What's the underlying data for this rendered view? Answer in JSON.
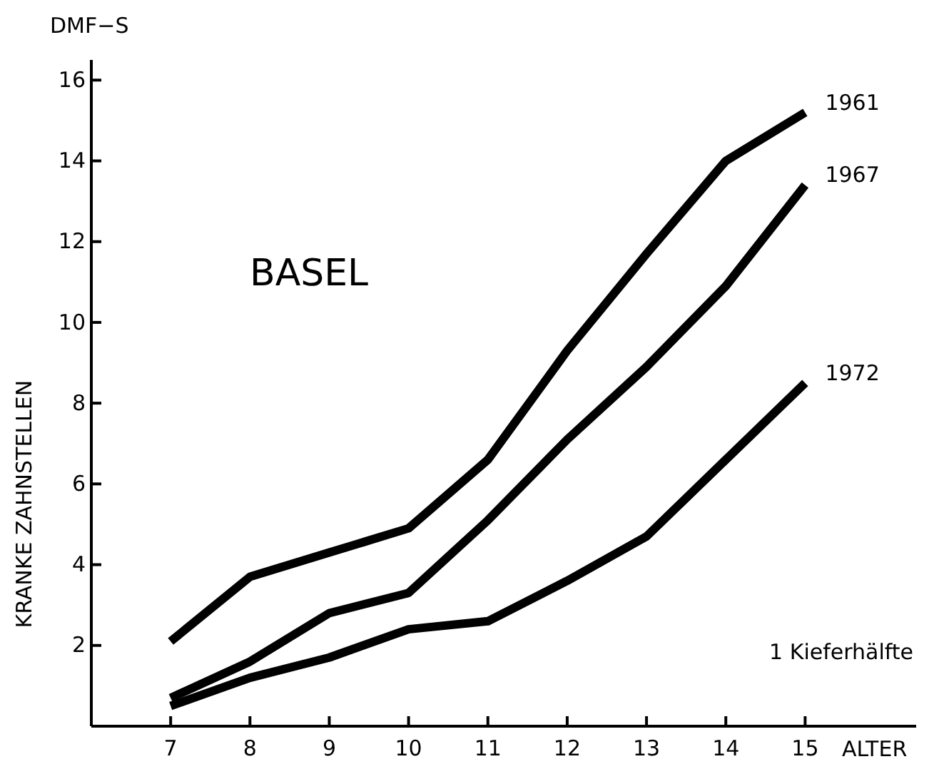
{
  "chart_data": {
    "type": "line",
    "title": "BASEL",
    "xlabel": "ALTER",
    "ylabel": "KRANKE  ZAHNSTELLEN",
    "annotations": [
      "DMF−S",
      "1 Kieferhälfte"
    ],
    "x": [
      7,
      8,
      9,
      10,
      11,
      12,
      13,
      14,
      15
    ],
    "xlim": [
      6,
      16.4
    ],
    "xticks": [
      7,
      8,
      9,
      10,
      11,
      12,
      13,
      14,
      15
    ],
    "ylim": [
      0,
      16.5
    ],
    "yticks": [
      2,
      4,
      6,
      8,
      10,
      12,
      14,
      16
    ],
    "grid": false,
    "series": [
      {
        "name": "1961",
        "color": "#000000",
        "values": [
          2.1,
          3.7,
          4.3,
          4.9,
          6.6,
          9.3,
          11.7,
          14.0,
          15.2
        ]
      },
      {
        "name": "1967",
        "color": "#000000",
        "values": [
          0.7,
          1.6,
          2.8,
          3.3,
          5.1,
          7.1,
          8.9,
          10.9,
          13.4
        ]
      },
      {
        "name": "1972",
        "color": "#000000",
        "values": [
          0.5,
          1.2,
          1.7,
          2.4,
          2.6,
          3.6,
          4.7,
          6.6,
          8.5
        ]
      }
    ]
  }
}
